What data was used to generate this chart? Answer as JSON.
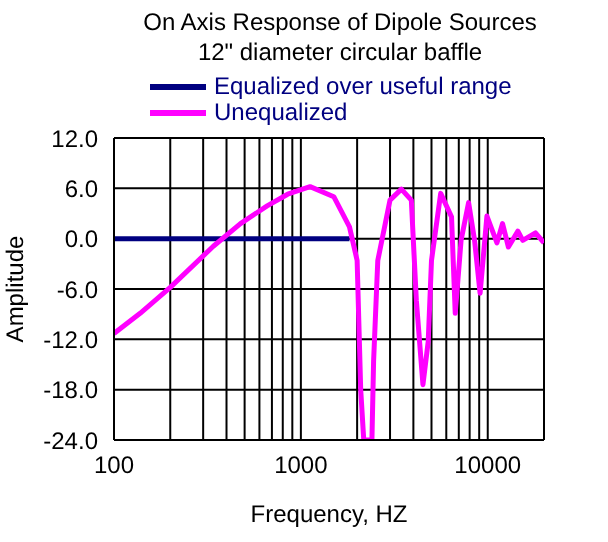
{
  "chart_data": {
    "type": "line",
    "title": "On Axis Response of Dipole Sources",
    "subtitle": "12\" diameter circular baffle",
    "xlabel": "Frequency, HZ",
    "ylabel": "Amplitude",
    "log": "x",
    "grid": true,
    "legend": "top",
    "marker": "none",
    "line_style": "solid",
    "xlim": [
      100,
      20000
    ],
    "xticks": [
      100,
      {
        "value": 200,
        "label": null
      },
      {
        "value": 300,
        "label": null
      },
      {
        "value": 400,
        "label": null
      },
      {
        "value": 500,
        "label": null
      },
      {
        "value": 600,
        "label": null
      },
      {
        "value": 700,
        "label": null
      },
      {
        "value": 800,
        "label": null
      },
      {
        "value": 900,
        "label": null
      },
      1000,
      {
        "value": 2000,
        "label": null
      },
      {
        "value": 3000,
        "label": null
      },
      {
        "value": 4000,
        "label": null
      },
      {
        "value": 5000,
        "label": null
      },
      {
        "value": 6000,
        "label": null
      },
      {
        "value": 7000,
        "label": null
      },
      {
        "value": 8000,
        "label": null
      },
      {
        "value": 9000,
        "label": null
      },
      10000,
      {
        "value": 20000,
        "label": null
      }
    ],
    "ylim": [
      -24,
      12
    ],
    "yticks": [
      {
        "value": -24,
        "label": "-24.0"
      },
      {
        "value": -18,
        "label": "-18.0"
      },
      {
        "value": -12,
        "label": "-12.0"
      },
      {
        "value": -6,
        "label": "-6.0"
      },
      {
        "value": 0,
        "label": "0.0"
      },
      {
        "value": 6,
        "label": "6.0"
      },
      {
        "value": 12,
        "label": "12.0"
      }
    ],
    "series": [
      {
        "name": "Equalized over useful range",
        "color": "#000080",
        "x": [
          100,
          1820
        ],
        "values": [
          0,
          0
        ]
      },
      {
        "name": "Unequalized",
        "color": "#ff00ff",
        "x": [
          100,
          138,
          200,
          340,
          475,
          660,
          850,
          1120,
          1500,
          1820,
          2000,
          2090,
          2170,
          2400,
          2450,
          2580,
          3000,
          3450,
          3900,
          4150,
          4500,
          4800,
          5000,
          5600,
          6400,
          6700,
          7200,
          7900,
          8500,
          9100,
          9900,
          11200,
          12000,
          12900,
          14500,
          15400,
          18000,
          20000
        ],
        "values": [
          -11.3,
          -8.9,
          -5.8,
          -0.9,
          1.8,
          3.9,
          5.3,
          6.2,
          5.0,
          1.4,
          -2.6,
          -18,
          -24,
          -24,
          -14.6,
          -2.6,
          4.6,
          5.9,
          4.6,
          -7.4,
          -17.4,
          -12.3,
          -2.6,
          5.4,
          2.6,
          -8.9,
          -0.2,
          4.3,
          -0.2,
          -6.5,
          2.7,
          -0.5,
          1.8,
          -1,
          0.9,
          -0.2,
          0.7,
          -0.5
        ]
      }
    ]
  }
}
